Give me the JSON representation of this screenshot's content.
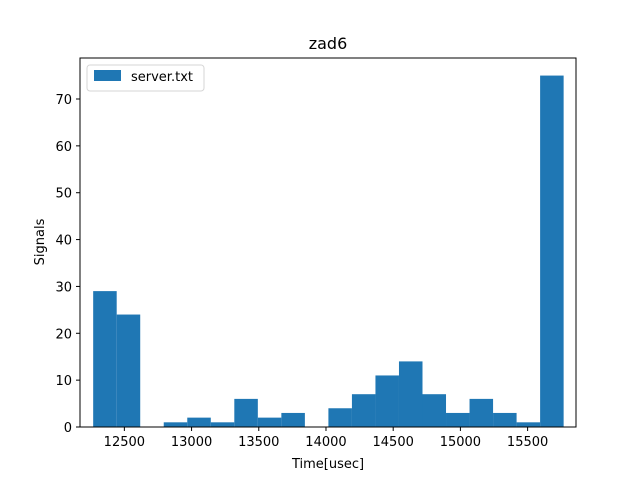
{
  "chart_data": {
    "type": "bar",
    "title": "zad6",
    "xlabel": "Time[usec]",
    "ylabel": "Signals",
    "legend": {
      "entries": [
        "server.txt"
      ],
      "placement": "top-left"
    },
    "xlim": [
      12170,
      15860
    ],
    "ylim": [
      0,
      78.75
    ],
    "xticks": [
      12500,
      13000,
      13500,
      14000,
      14500,
      15000,
      15500
    ],
    "yticks": [
      0,
      10,
      20,
      30,
      40,
      50,
      60,
      70
    ],
    "grid": false,
    "series": [
      {
        "name": "server.txt",
        "color": "#1f77b4",
        "bin_edges": [
          12268,
          12443,
          12618,
          12793,
          12968,
          13143,
          13318,
          13493,
          13668,
          13843,
          14018,
          14193,
          14368,
          14543,
          14718,
          14893,
          15068,
          15243,
          15418,
          15593,
          15768
        ],
        "values": [
          29,
          24,
          0,
          1,
          2,
          1,
          6,
          2,
          3,
          0,
          4,
          7,
          11,
          14,
          7,
          3,
          6,
          3,
          1,
          75
        ]
      }
    ]
  }
}
